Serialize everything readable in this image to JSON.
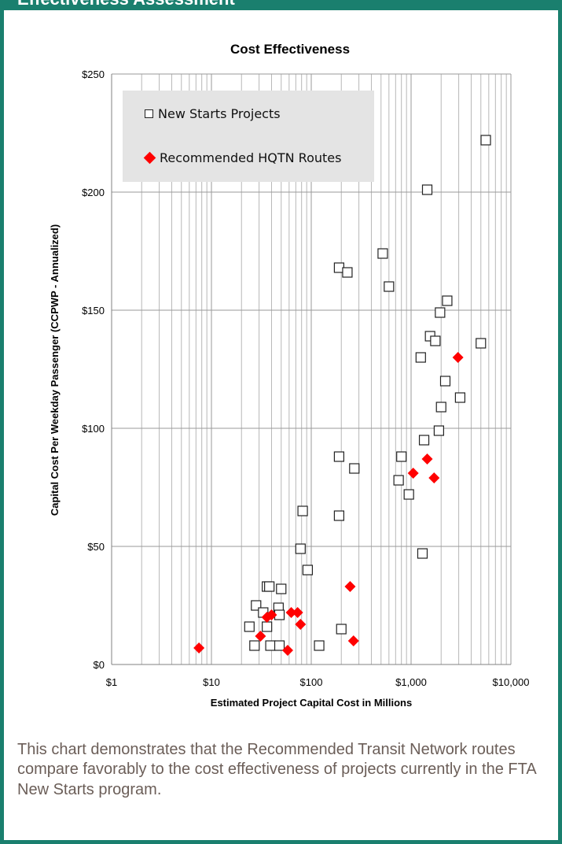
{
  "section": {
    "title": "Effectiveness Assessment",
    "caption": "This chart demonstrates that the Recommended Transit Network routes compare favorably to the cost effectiveness of projects currently in the FTA New Starts program."
  },
  "colors": {
    "accent": "#1a7f6e",
    "recommended": "#ff0000",
    "gridline": "#b7b7b7",
    "legend_bg": "#e4e4e4"
  },
  "chart_data": {
    "type": "scatter",
    "title": "Cost Effectiveness",
    "xlabel": "Estimated Project Capital Cost in Millions",
    "ylabel": "Capital Cost Per Weekday Passenger (CCPWP - Annualized)",
    "x_scale": "log",
    "xlim": [
      1,
      10000
    ],
    "ylim": [
      0,
      250
    ],
    "x_ticks": [
      "$1",
      "$10",
      "$100",
      "$1,000",
      "$10,000"
    ],
    "y_ticks": [
      "$0",
      "$50",
      "$100",
      "$150",
      "$200",
      "$250"
    ],
    "grid": true,
    "legend_position": "top-left",
    "series": [
      {
        "name": "New Starts Projects",
        "marker": "square",
        "points": [
          [
            5600,
            222
          ],
          [
            1450,
            201
          ],
          [
            520,
            174
          ],
          [
            190,
            168
          ],
          [
            230,
            166
          ],
          [
            600,
            160
          ],
          [
            2300,
            154
          ],
          [
            1950,
            149
          ],
          [
            1550,
            139
          ],
          [
            1750,
            137
          ],
          [
            5000,
            136
          ],
          [
            1250,
            130
          ],
          [
            2200,
            120
          ],
          [
            3100,
            113
          ],
          [
            2000,
            109
          ],
          [
            1900,
            99
          ],
          [
            1350,
            95
          ],
          [
            190,
            88
          ],
          [
            800,
            88
          ],
          [
            270,
            83
          ],
          [
            750,
            78
          ],
          [
            950,
            72
          ],
          [
            82,
            65
          ],
          [
            190,
            63
          ],
          [
            78,
            49
          ],
          [
            1300,
            47
          ],
          [
            92,
            40
          ],
          [
            36,
            33
          ],
          [
            38,
            33
          ],
          [
            50,
            32
          ],
          [
            28,
            25
          ],
          [
            47,
            24
          ],
          [
            33,
            22
          ],
          [
            48,
            21
          ],
          [
            24,
            16
          ],
          [
            36,
            16
          ],
          [
            200,
            15
          ],
          [
            27,
            8
          ],
          [
            39,
            8
          ],
          [
            48,
            8
          ],
          [
            120,
            8
          ]
        ]
      },
      {
        "name": "Recommended HQTN Routes",
        "marker": "diamond",
        "points": [
          [
            2950,
            130
          ],
          [
            1450,
            87
          ],
          [
            1050,
            81
          ],
          [
            1700,
            79
          ],
          [
            245,
            33
          ],
          [
            63,
            22
          ],
          [
            73,
            22
          ],
          [
            40,
            21
          ],
          [
            36,
            20
          ],
          [
            78,
            17
          ],
          [
            31,
            12
          ],
          [
            7.5,
            7
          ],
          [
            265,
            10
          ],
          [
            58,
            6
          ]
        ]
      }
    ]
  }
}
